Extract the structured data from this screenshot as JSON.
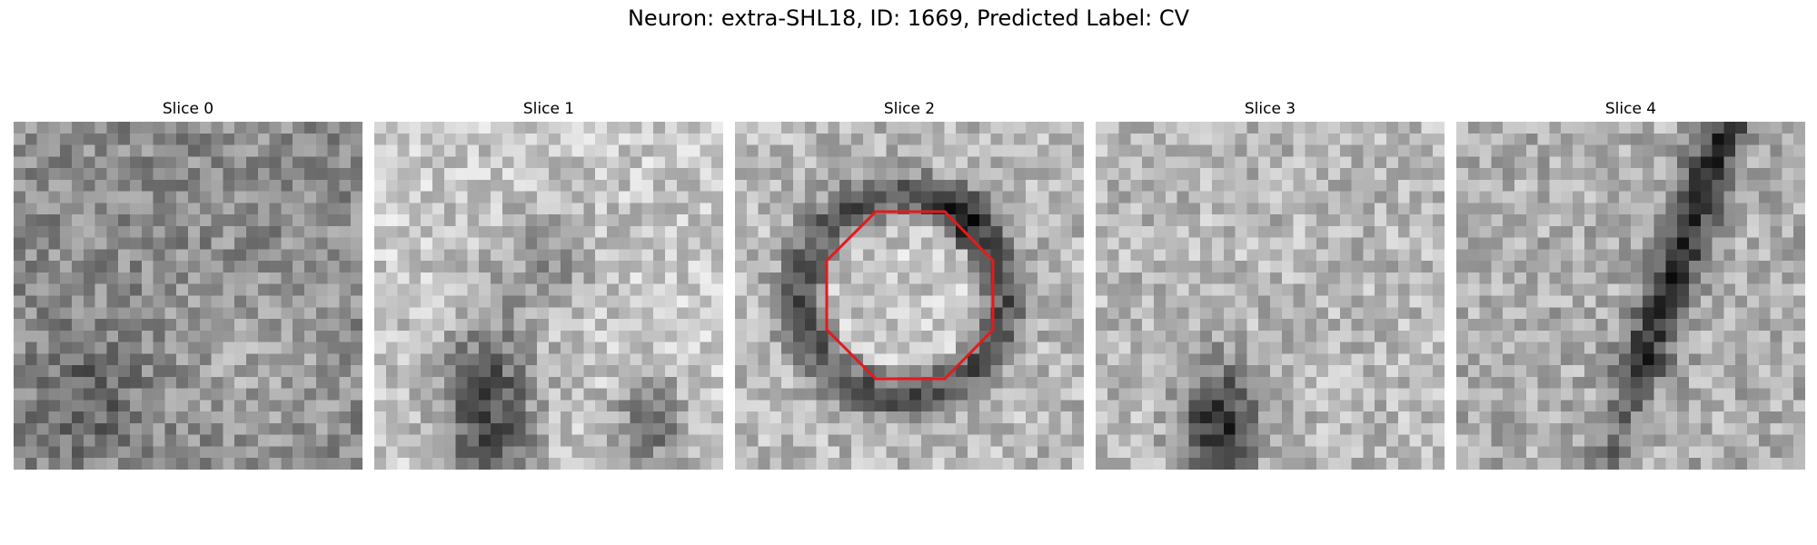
{
  "figure": {
    "title": "Neuron: extra-SHL18, ID: 1669, Predicted Label: CV"
  },
  "panels": [
    {
      "title": "Slice 0",
      "pattern": "noise",
      "base": 0.55
    },
    {
      "title": "Slice 1",
      "pattern": "dark-bottom",
      "base": 0.65
    },
    {
      "title": "Slice 2",
      "pattern": "ring",
      "base": 0.62,
      "roi": true
    },
    {
      "title": "Slice 3",
      "pattern": "dark-blob-bottom",
      "base": 0.68
    },
    {
      "title": "Slice 4",
      "pattern": "dark-diagonal",
      "base": 0.6
    }
  ],
  "roi": {
    "shape": "octagon",
    "color": "#e41a1c"
  },
  "colormap": "gray"
}
